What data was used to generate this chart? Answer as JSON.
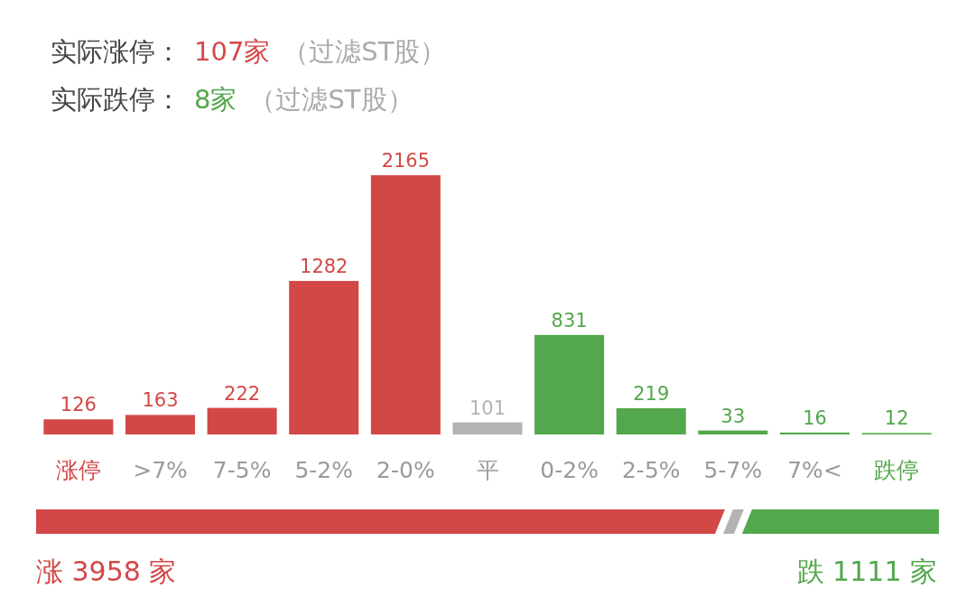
{
  "chart_data": {
    "type": "bar",
    "categories": [
      "涨停",
      ">7%",
      "7-5%",
      "5-2%",
      "2-0%",
      "平",
      "0-2%",
      "2-5%",
      "5-7%",
      "7%<",
      "跌停"
    ],
    "values": [
      126,
      163,
      222,
      1282,
      2165,
      101,
      831,
      219,
      33,
      16,
      12
    ],
    "colors": [
      "#d24847",
      "#d24847",
      "#d24847",
      "#d24847",
      "#d24847",
      "#b3b3b3",
      "#53a74c",
      "#53a74c",
      "#53a74c",
      "#53a74c",
      "#53a74c"
    ],
    "data_labels": true,
    "tick_labels": "x",
    "annotations": [
      "实际涨停：",
      "107家",
      "（过滤ST股）",
      "实际跌停：",
      "8家",
      "（过滤ST股）",
      "涨 3958 家",
      "跌 1111 家"
    ]
  }
}
